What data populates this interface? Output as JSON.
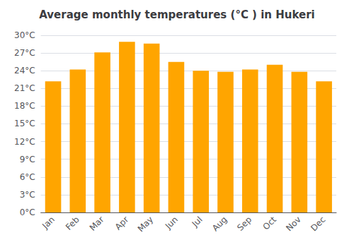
{
  "chart_data": {
    "type": "bar",
    "title": "Average monthly temperatures (°C ) in Hukeri",
    "categories": [
      "Jan",
      "Feb",
      "Mar",
      "Apr",
      "May",
      "Jun",
      "Jul",
      "Aug",
      "Sep",
      "Oct",
      "Nov",
      "Dec"
    ],
    "values": [
      22.2,
      24.2,
      27.1,
      28.9,
      28.6,
      25.5,
      24.0,
      23.8,
      24.2,
      25.0,
      23.8,
      22.2
    ],
    "color": "#FFA500",
    "ylim": [
      0,
      30
    ],
    "yticks": [
      {
        "value": 0,
        "label": "0°C"
      },
      {
        "value": 3,
        "label": "3°C"
      },
      {
        "value": 6,
        "label": "6°C"
      },
      {
        "value": 9,
        "label": "9°C"
      },
      {
        "value": 12,
        "label": "12°C"
      },
      {
        "value": 15,
        "label": "15°C"
      },
      {
        "value": 18,
        "label": "18°C"
      },
      {
        "value": 21,
        "label": "21°C"
      },
      {
        "value": 24,
        "label": "24°C"
      },
      {
        "value": 27,
        "label": "27°C"
      },
      {
        "value": 30,
        "label": "30°C"
      }
    ],
    "grid": true
  }
}
